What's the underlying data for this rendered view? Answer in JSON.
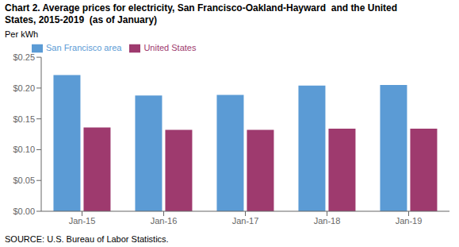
{
  "chart_data": {
    "type": "bar",
    "title": "Chart 2. Average prices for electricity, San Francisco-Oakland-Hayward  and the United\nStates, 2015-2019  (as of January)",
    "ylabel": "Per kWh",
    "annotations": [
      "SOURCE: U.S. Bureau of Labor Statistics."
    ],
    "categories": [
      "Jan-15",
      "Jan-16",
      "Jan-17",
      "Jan-18",
      "Jan-19"
    ],
    "series": [
      {
        "name": "San Francisco area",
        "color": "#5B9BD5",
        "values": [
          0.221,
          0.188,
          0.189,
          0.204,
          0.205
        ]
      },
      {
        "name": "United States",
        "color": "#9E3A6E",
        "values": [
          0.136,
          0.132,
          0.132,
          0.134,
          0.134
        ]
      }
    ],
    "ylim": [
      0,
      0.25
    ],
    "yticks": [
      {
        "value": 0.0,
        "label": "$0.00"
      },
      {
        "value": 0.05,
        "label": "$0.05"
      },
      {
        "value": 0.1,
        "label": "$0.10"
      },
      {
        "value": 0.15,
        "label": "$0.15"
      },
      {
        "value": 0.2,
        "label": "$0.20"
      },
      {
        "value": 0.25,
        "label": "$0.25"
      }
    ],
    "grid": false,
    "legend": "upper left"
  }
}
